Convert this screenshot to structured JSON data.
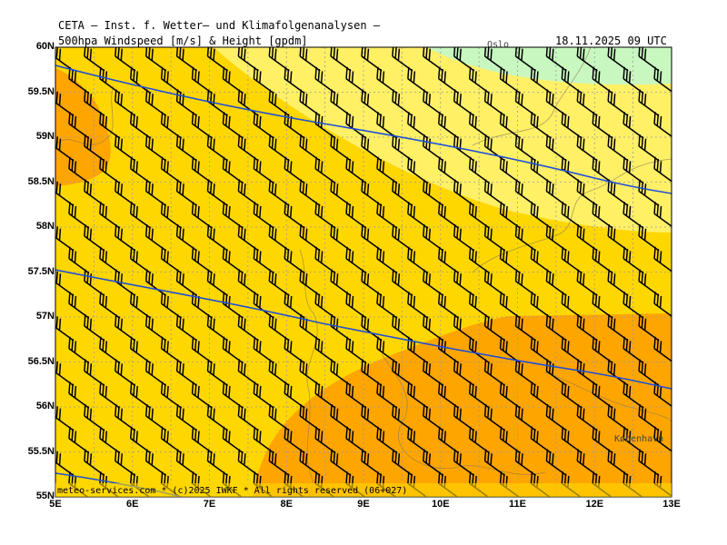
{
  "header": {
    "title": "CETA – Inst. f. Wetter– und Klimafolgenanalysen –",
    "subtitle": "500hpa Windspeed [m/s] & Height [gpdm]",
    "datetime": "18.11.2025 09 UTC"
  },
  "footer": {
    "credit": "meteo-services.com * (c)2025 IWKF * All rights reserved (06+027)"
  },
  "cities": {
    "oslo": "Oslo",
    "kobenhavn": "København"
  },
  "axes": {
    "y_ticks": [
      "60N",
      "59.5N",
      "59N",
      "58.5N",
      "58N",
      "57.5N",
      "57N",
      "56.5N",
      "56N",
      "55.5N",
      "55N"
    ],
    "x_ticks": [
      "5E",
      "6E",
      "7E",
      "8E",
      "9E",
      "10E",
      "11E",
      "12E",
      "13E"
    ],
    "lat_range": [
      55,
      60
    ],
    "lon_range": [
      5,
      13
    ]
  },
  "colors": {
    "light_green": "#c8f8c0",
    "light_yellow": "#fff066",
    "yellow": "#ffd700",
    "orange": "#ffa500",
    "contour": "#1f4fd8",
    "grid": "#9a9a9a",
    "barb": "#000000"
  }
}
